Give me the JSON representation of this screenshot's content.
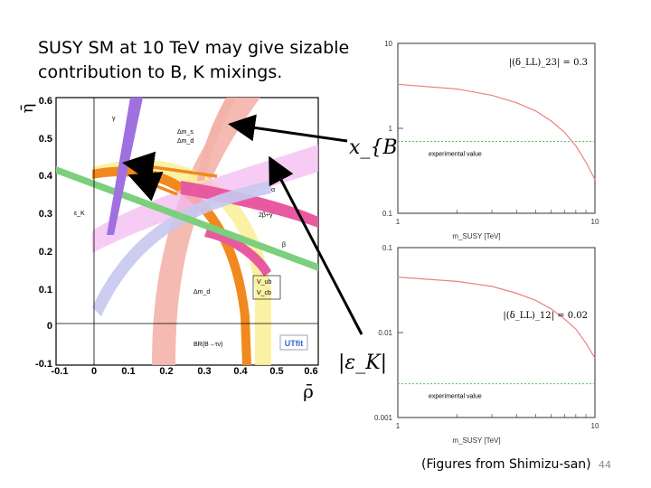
{
  "slide": {
    "title_lines": [
      "SUSY SM at 10 TeV may give sizable",
      "contribution to B, K mixings."
    ],
    "caption": "(Figures from Shimizu-san)",
    "page_number": "44"
  },
  "ut_fit": {
    "y_axis_label": "η̄",
    "x_axis_label": "ρ̄",
    "x_ticks": [
      "-0.1",
      "0",
      "0.1",
      "0.2",
      "0.3",
      "0.4",
      "0.5",
      "0.6"
    ],
    "y_ticks": [
      "0.6",
      "0.5",
      "0.4",
      "0.3",
      "0.2",
      "0.1",
      "0",
      "-0.1"
    ],
    "labels": {
      "gamma": "γ",
      "dms": "Δm_s",
      "dms_den": "Δm_d",
      "alpha": "α",
      "eps": "ε_K",
      "twobg": "2β+γ",
      "beta": "β",
      "dmd": "Δm_d",
      "vub": "V_ub",
      "vcb": "V_cb",
      "br": "BR(B→τν)",
      "utfit": "UTfit"
    }
  },
  "annotations": {
    "xbd": "x_{B_d}",
    "epsk": "|ε_K|"
  },
  "chart_data": [
    {
      "type": "line",
      "title": "",
      "annotation": "|(δ_LL)_23| = 0.3",
      "xlabel": "m_SUSY [TeV]",
      "ylabel": "",
      "x_scale": "log",
      "y_scale": "log",
      "xlim": [
        1,
        10
      ],
      "ylim": [
        0.1,
        10
      ],
      "x_ticks": [
        "1",
        "10"
      ],
      "y_ticks": [
        "10",
        "1",
        "0.1"
      ],
      "series": [
        {
          "x": [
            1,
            2,
            3,
            4,
            5,
            6,
            7,
            8,
            9,
            10
          ],
          "y": [
            3.3,
            2.9,
            2.45,
            2.0,
            1.6,
            1.22,
            0.9,
            0.62,
            0.4,
            0.25
          ]
        }
      ],
      "reference_line": {
        "label": "experimental value",
        "y": 0.7
      }
    },
    {
      "type": "line",
      "title": "",
      "annotation": "|(δ_LL)_12| = 0.02",
      "xlabel": "m_SUSY [TeV]",
      "ylabel": "",
      "x_scale": "log",
      "y_scale": "log",
      "xlim": [
        1,
        10
      ],
      "ylim": [
        0.001,
        0.1
      ],
      "x_ticks": [
        "1",
        "10"
      ],
      "y_ticks": [
        "0.1",
        "0.01",
        "0.001"
      ],
      "series": [
        {
          "x": [
            1,
            2,
            3,
            4,
            5,
            6,
            7,
            8,
            9,
            10
          ],
          "y": [
            0.045,
            0.04,
            0.035,
            0.029,
            0.024,
            0.019,
            0.0145,
            0.011,
            0.0075,
            0.005
          ]
        }
      ],
      "reference_line": {
        "label": "experimental value",
        "y": 0.0025
      }
    }
  ],
  "colors": {
    "curve": "#f08080",
    "experimental": "#66bb66",
    "arrow": "#000000"
  }
}
